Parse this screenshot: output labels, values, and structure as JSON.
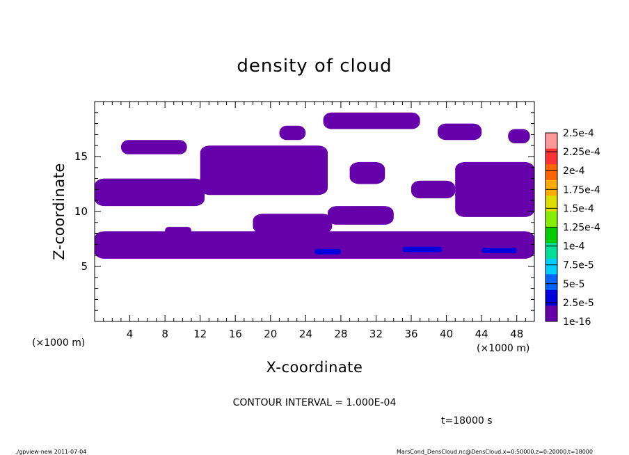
{
  "chart_data": {
    "type": "heatmap",
    "title": "density of cloud",
    "xlabel": "X-coordinate",
    "ylabel": "Z-coordinate",
    "x_unit_left": "(×1000 m)",
    "x_unit_right": "(×1000 m)",
    "xlim": [
      0,
      50
    ],
    "ylim": [
      0,
      20
    ],
    "x_ticks": [
      4,
      8,
      12,
      16,
      20,
      24,
      28,
      32,
      36,
      40,
      44,
      48
    ],
    "y_ticks": [
      5,
      10,
      15
    ],
    "colorbar": {
      "levels": [
        "2.5e-4",
        "2.25e-4",
        "2e-4",
        "1.75e-4",
        "1.5e-4",
        "1.25e-4",
        "1e-4",
        "7.5e-5",
        "5e-5",
        "2.5e-5",
        "1e-16"
      ],
      "colors": [
        "#ff9999",
        "#ff3333",
        "#ff6600",
        "#ffaa00",
        "#dddd00",
        "#88ee00",
        "#00cc00",
        "#00dd99",
        "#00ccff",
        "#0066ff",
        "#0000dd",
        "#6600aa"
      ]
    },
    "contour_interval": "CONTOUR INTERVAL = 1.000E-04",
    "time_label": "t=18000 s",
    "cloud_regions": [
      {
        "x": [
          0,
          50
        ],
        "z": [
          5.7,
          8.2
        ],
        "level": "1e-16"
      },
      {
        "x": [
          25,
          28
        ],
        "z": [
          6.1,
          6.6
        ],
        "level": "2.5e-5"
      },
      {
        "x": [
          35,
          39.5
        ],
        "z": [
          6.3,
          6.8
        ],
        "level": "2.5e-5"
      },
      {
        "x": [
          44,
          48
        ],
        "z": [
          6.2,
          6.7
        ],
        "level": "2.5e-5"
      },
      {
        "x": [
          0,
          12.5
        ],
        "z": [
          10.5,
          13.0
        ],
        "level": "1e-16"
      },
      {
        "x": [
          3,
          10.5
        ],
        "z": [
          15.2,
          16.5
        ],
        "level": "1e-16"
      },
      {
        "x": [
          12,
          26.5
        ],
        "z": [
          11.5,
          16.0
        ],
        "level": "1e-16"
      },
      {
        "x": [
          18,
          27
        ],
        "z": [
          8.0,
          9.8
        ],
        "level": "1e-16"
      },
      {
        "x": [
          26.5,
          34
        ],
        "z": [
          8.8,
          10.5
        ],
        "level": "1e-16"
      },
      {
        "x": [
          29,
          33
        ],
        "z": [
          12.5,
          14.5
        ],
        "level": "1e-16"
      },
      {
        "x": [
          36,
          41
        ],
        "z": [
          11.2,
          12.8
        ],
        "level": "1e-16"
      },
      {
        "x": [
          41,
          50
        ],
        "z": [
          9.5,
          14.5
        ],
        "level": "1e-16"
      },
      {
        "x": [
          26,
          37
        ],
        "z": [
          17.5,
          19.0
        ],
        "level": "1e-16"
      },
      {
        "x": [
          21,
          24
        ],
        "z": [
          16.5,
          17.8
        ],
        "level": "1e-16"
      },
      {
        "x": [
          39,
          44
        ],
        "z": [
          16.5,
          18.0
        ],
        "level": "1e-16"
      },
      {
        "x": [
          47,
          49.5
        ],
        "z": [
          16.2,
          17.5
        ],
        "level": "1e-16"
      },
      {
        "x": [
          8,
          11
        ],
        "z": [
          7.9,
          8.6
        ],
        "level": "1e-16"
      }
    ]
  },
  "footer": {
    "left": "./gpview-new  2011-07-04",
    "right": "MarsCond_DensCloud.nc@DensCloud,x=0:50000,z=0:20000,t=18000"
  }
}
